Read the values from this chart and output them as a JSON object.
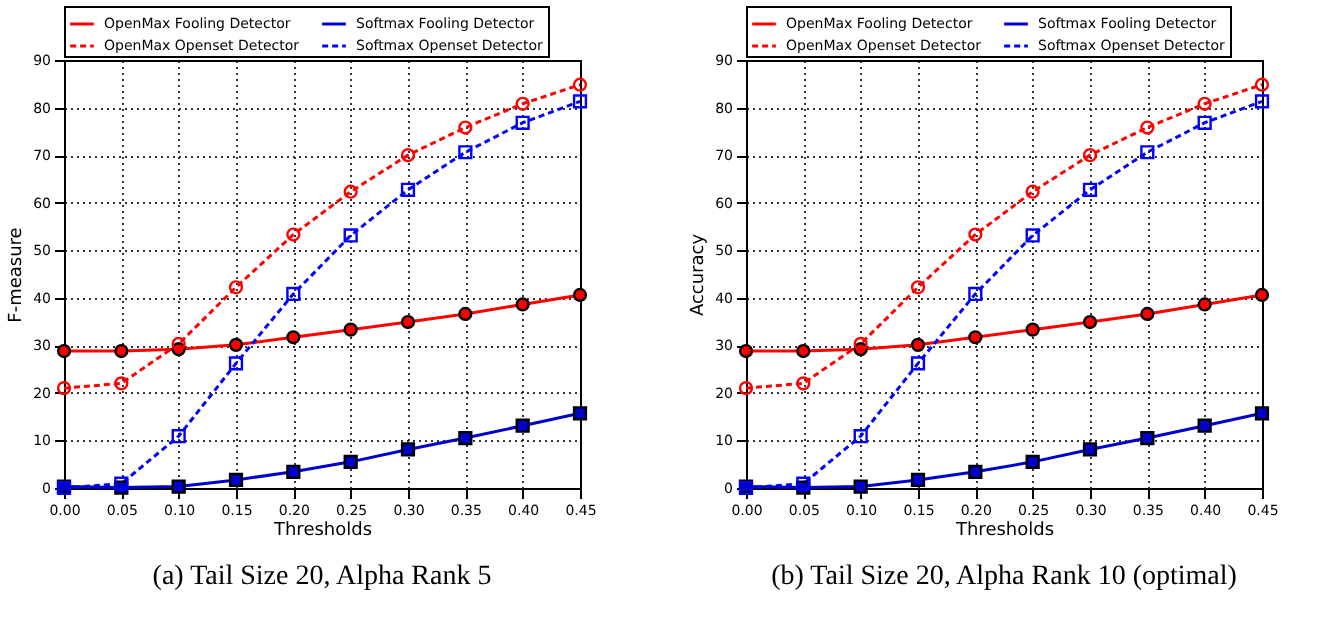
{
  "chart_data": [
    {
      "type": "line",
      "ylabel": "F-measure",
      "xlabel": "Thresholds",
      "annotations": [
        "(a) Tail Size 20, Alpha Rank 5"
      ],
      "x": [
        0,
        0.05,
        0.1,
        0.15,
        0.2,
        0.25,
        0.3,
        0.35,
        0.4,
        0.45
      ],
      "xlim": [
        0,
        0.45
      ],
      "xticks": [
        {
          "value": 0,
          "label": "0.00"
        },
        {
          "value": 0.05,
          "label": "0.05"
        },
        {
          "value": 0.1,
          "label": "0.10"
        },
        {
          "value": 0.15,
          "label": "0.15"
        },
        {
          "value": 0.2,
          "label": "0.20"
        },
        {
          "value": 0.25,
          "label": "0.25"
        },
        {
          "value": 0.3,
          "label": "0.30"
        },
        {
          "value": 0.35,
          "label": "0.35"
        },
        {
          "value": 0.4,
          "label": "0.40"
        },
        {
          "value": 0.45,
          "label": "0.45"
        }
      ],
      "ylim": [
        0,
        90
      ],
      "yticks": [
        0,
        10,
        20,
        30,
        40,
        50,
        60,
        70,
        80,
        90
      ],
      "grid": true,
      "legend": "top",
      "series": [
        {
          "name": "OpenMax Fooling Detector",
          "color": "#ff0000",
          "marker": "circle",
          "line_style": "solid",
          "values": [
            28.8,
            28.8,
            29.2,
            30.1,
            31.7,
            33.3,
            34.9,
            36.6,
            38.6,
            40.6
          ]
        },
        {
          "name": "Softmax Fooling Detector",
          "color": "#0000cc",
          "marker": "square",
          "line_style": "solid",
          "values": [
            0.3,
            0.1,
            0.3,
            1.7,
            3.4,
            5.5,
            8.1,
            10.5,
            13.1,
            15.7
          ]
        },
        {
          "name": "OpenMax Openset Detector",
          "color": "#ff0000",
          "marker": "circle",
          "line_style": "dashed",
          "values": [
            21,
            22,
            30.3,
            42.2,
            53.3,
            62.3,
            70,
            75.8,
            80.8,
            84.8
          ]
        },
        {
          "name": "Softmax Openset Detector",
          "color": "#0000ff",
          "marker": "square",
          "line_style": "dashed",
          "values": [
            0,
            0.9,
            10.9,
            26.2,
            40.8,
            53.1,
            62.7,
            70.6,
            76.8,
            81.3
          ]
        }
      ]
    },
    {
      "type": "line",
      "ylabel": "Accuracy",
      "xlabel": "Thresholds",
      "annotations": [
        "(b) Tail Size 20, Alpha Rank 10 (optimal)"
      ],
      "x": [
        0,
        0.05,
        0.1,
        0.15,
        0.2,
        0.25,
        0.3,
        0.35,
        0.4,
        0.45
      ],
      "xlim": [
        0,
        0.45
      ],
      "xticks": [
        {
          "value": 0,
          "label": "0.00"
        },
        {
          "value": 0.05,
          "label": "0.05"
        },
        {
          "value": 0.1,
          "label": "0.10"
        },
        {
          "value": 0.15,
          "label": "0.15"
        },
        {
          "value": 0.2,
          "label": "0.20"
        },
        {
          "value": 0.25,
          "label": "0.25"
        },
        {
          "value": 0.3,
          "label": "0.30"
        },
        {
          "value": 0.35,
          "label": "0.35"
        },
        {
          "value": 0.4,
          "label": "0.40"
        },
        {
          "value": 0.45,
          "label": "0.45"
        }
      ],
      "ylim": [
        0,
        90
      ],
      "yticks": [
        0,
        10,
        20,
        30,
        40,
        50,
        60,
        70,
        80,
        90
      ],
      "grid": true,
      "legend": "top",
      "series": [
        {
          "name": "OpenMax Fooling Detector",
          "color": "#ff0000",
          "marker": "circle",
          "line_style": "solid",
          "values": [
            28.8,
            28.8,
            29.2,
            30.1,
            31.7,
            33.3,
            34.9,
            36.6,
            38.6,
            40.6
          ]
        },
        {
          "name": "Softmax Fooling Detector",
          "color": "#0000cc",
          "marker": "square",
          "line_style": "solid",
          "values": [
            0.3,
            0.1,
            0.3,
            1.7,
            3.4,
            5.5,
            8.1,
            10.5,
            13.1,
            15.7
          ]
        },
        {
          "name": "OpenMax Openset Detector",
          "color": "#ff0000",
          "marker": "circle",
          "line_style": "dashed",
          "values": [
            21,
            22,
            30.3,
            42.2,
            53.3,
            62.3,
            70,
            75.8,
            80.8,
            84.8
          ]
        },
        {
          "name": "Softmax Openset Detector",
          "color": "#0000ff",
          "marker": "square",
          "line_style": "dashed",
          "values": [
            0,
            0.9,
            10.9,
            26.2,
            40.8,
            53.1,
            62.7,
            70.6,
            76.8,
            81.3
          ]
        }
      ]
    }
  ]
}
